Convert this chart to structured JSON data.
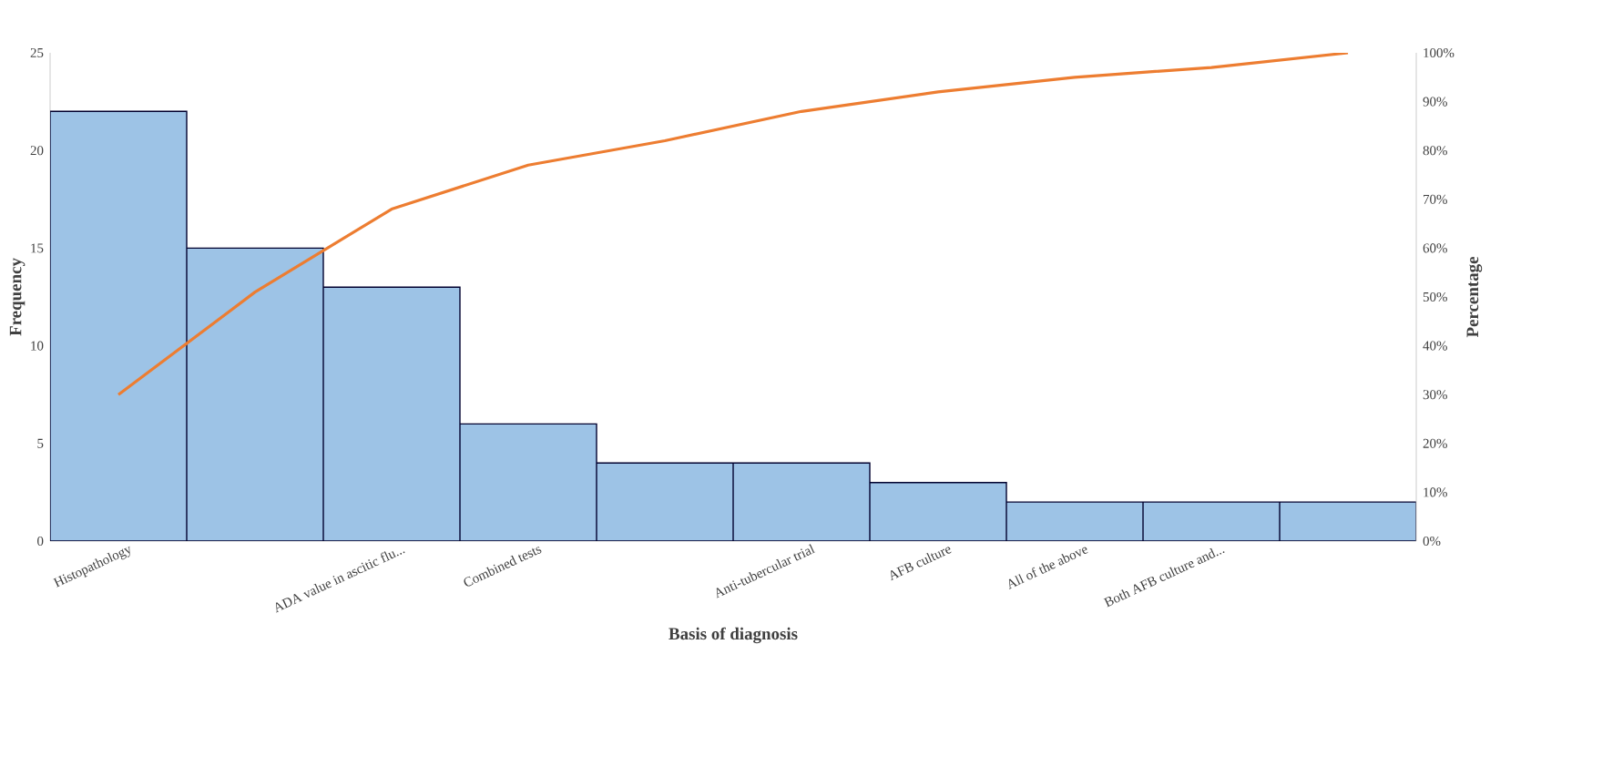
{
  "chart_data": {
    "type": "bar",
    "xlabel": "Basis of diagnosis",
    "ylabel": "Frequency",
    "y2label": "Percentage",
    "categories": [
      "Histopathology",
      null,
      "ADA value in ascitic flu...",
      "Combined tests",
      null,
      "Anti-tubercular trial",
      "AFB culture",
      "All of the above",
      "Both AFB culture and...",
      null
    ],
    "ylim": [
      0,
      25
    ],
    "yticks": [
      0,
      5,
      10,
      15,
      20,
      25
    ],
    "y2lim": [
      0,
      100
    ],
    "y2ticks": [
      {
        "value": 0,
        "label": "0%"
      },
      {
        "value": 10,
        "label": "10%"
      },
      {
        "value": 20,
        "label": "20%"
      },
      {
        "value": 30,
        "label": "30%"
      },
      {
        "value": 40,
        "label": "40%"
      },
      {
        "value": 50,
        "label": "50%"
      },
      {
        "value": 60,
        "label": "60%"
      },
      {
        "value": 70,
        "label": "70%"
      },
      {
        "value": 80,
        "label": "80%"
      },
      {
        "value": 90,
        "label": "90%"
      },
      {
        "value": 100,
        "label": "100%"
      }
    ],
    "series": [
      {
        "color": "#9dc3e6",
        "values": [
          22,
          15,
          13,
          6,
          4,
          4,
          3,
          2,
          2,
          2
        ]
      },
      {
        "type": "line",
        "axis": "y2",
        "color": "#ed7d31",
        "values": [
          30,
          51,
          68,
          77,
          82,
          88,
          92,
          95,
          97,
          100
        ]
      }
    ]
  }
}
